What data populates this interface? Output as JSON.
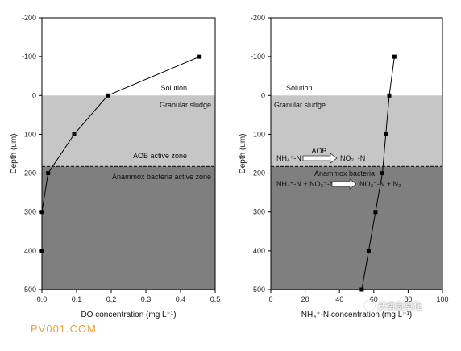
{
  "chart_data": [
    {
      "type": "line",
      "xlabel": "DO concentration (mg L⁻¹)",
      "ylabel": "Depth (um)",
      "xlim": [
        0.0,
        0.5
      ],
      "ylim": [
        -200,
        500
      ],
      "y_inverted": true,
      "xticks": [
        "0.0",
        "0.1",
        "0.2",
        "0.3",
        "0.4",
        "0.5"
      ],
      "yticks": [
        "-200",
        "-100",
        "0",
        "100",
        "200",
        "300",
        "400",
        "500"
      ],
      "series": [
        {
          "x": [
            0.455,
            0.19,
            0.093,
            0.018,
            0.0,
            0.0
          ],
          "y": [
            -100,
            0,
            100,
            200,
            300,
            400
          ]
        }
      ],
      "zones": {
        "solution": "Solution",
        "granular": "Granular sludge",
        "aob": "AOB active zone",
        "anammox": "Anammox bacteria active zone"
      }
    },
    {
      "type": "line",
      "xlabel": "NH₄⁺-N concentration (mg L⁻¹)",
      "ylabel": "Depth (um)",
      "xlim": [
        0,
        100
      ],
      "ylim": [
        -200,
        500
      ],
      "y_inverted": true,
      "xticks": [
        "0",
        "20",
        "40",
        "60",
        "80",
        "100"
      ],
      "yticks": [
        "-200",
        "-100",
        "0",
        "100",
        "200",
        "300",
        "400",
        "500"
      ],
      "series": [
        {
          "x": [
            72,
            69,
            67,
            65,
            61,
            57,
            53
          ],
          "y": [
            -100,
            0,
            100,
            200,
            300,
            400,
            500
          ]
        }
      ],
      "zones": {
        "solution": "Solution",
        "granular": "Granular sludge",
        "anammox": "Anammox bacteria"
      },
      "reactions": {
        "aob": {
          "left": "NH₄⁺-N",
          "arrow": "AOB",
          "right": "NO₂⁻-N"
        },
        "anammox": {
          "left": "NH₄⁺-N + NO₂⁻-N",
          "right": "NO₃⁻-N + N₂"
        }
      }
    }
  ],
  "zone_boundaries": {
    "sludge_top": 0,
    "anammox_top": 183
  },
  "colors": {
    "solution": "#ffffff",
    "granular": "#c6c6c6",
    "anammox": "#7f7f7f",
    "line": "#000000"
  },
  "watermark": {
    "left": "PV001.COM",
    "right": "厌氧氨氧化"
  }
}
